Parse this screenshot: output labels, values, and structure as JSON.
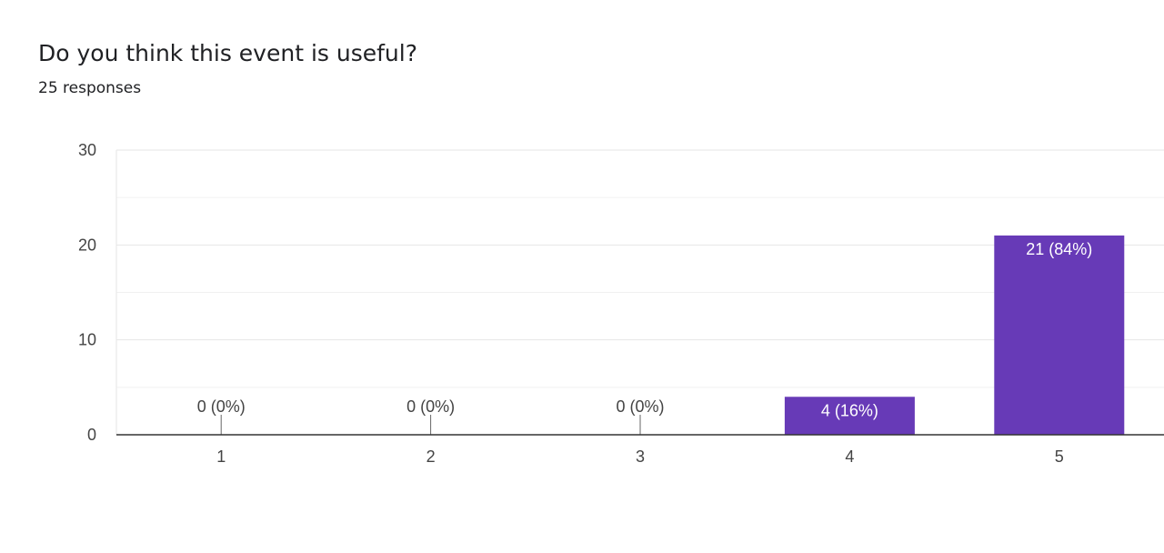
{
  "question": {
    "title": "Do you think this event is useful?",
    "response_count": "25 responses"
  },
  "chart_data": {
    "type": "bar",
    "categories": [
      "1",
      "2",
      "3",
      "4",
      "5"
    ],
    "values": [
      0,
      0,
      0,
      4,
      21
    ],
    "data_labels": [
      "0 (0%)",
      "0 (0%)",
      "0 (0%)",
      "4 (16%)",
      "21 (84%)"
    ],
    "y_ticks": [
      0,
      10,
      20,
      30
    ],
    "ylim": [
      0,
      30
    ],
    "grid": true,
    "bar_color": "#673ab7",
    "title": "",
    "xlabel": "",
    "ylabel": ""
  }
}
